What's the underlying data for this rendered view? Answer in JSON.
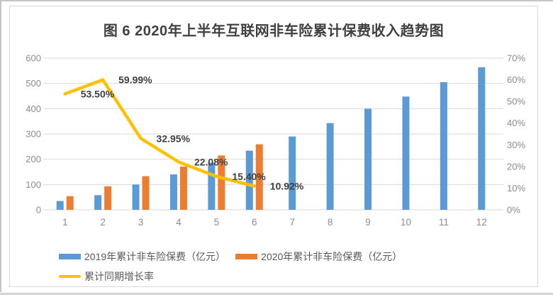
{
  "frame": {
    "background": "#ffffff",
    "card_border_color": "#d9d9d9"
  },
  "chart_data": {
    "type": "bar",
    "subtype": "clustered-bars-with-line",
    "title": "图 6 2020年上半年互联网非车险累计保费收入趋势图",
    "categories": [
      "1",
      "2",
      "3",
      "4",
      "5",
      "6",
      "7",
      "8",
      "9",
      "10",
      "11",
      "12"
    ],
    "series": [
      {
        "name": "2019年累计非车险保费（亿元）",
        "type": "bar",
        "axis": "left",
        "color": "#5B9BD5",
        "values": [
          35,
          58,
          100,
          140,
          186,
          234,
          290,
          343,
          400,
          448,
          505,
          564
        ]
      },
      {
        "name": "2020年累计非车险保费（亿元）",
        "type": "bar",
        "axis": "left",
        "color": "#ED7D31",
        "values": [
          54,
          93,
          133,
          171,
          215,
          259,
          null,
          null,
          null,
          null,
          null,
          null
        ]
      },
      {
        "name": "累计同期增长率",
        "type": "line",
        "axis": "right",
        "color": "#FFC000",
        "values_pct": [
          53.5,
          59.99,
          32.95,
          22.08,
          15.4,
          10.92
        ],
        "point_labels": [
          "53.50%",
          "59.99%",
          "32.95%",
          "22.08%",
          "15.40%",
          "10.92%"
        ]
      }
    ],
    "left_axis": {
      "min": 0,
      "max": 600,
      "step": 100,
      "tick_labels": [
        "600",
        "500",
        "400",
        "300",
        "200",
        "100",
        "0"
      ]
    },
    "right_axis": {
      "min": 0,
      "max": 70,
      "step": 10,
      "tick_labels": [
        "70%",
        "60%",
        "50%",
        "40%",
        "30%",
        "20%",
        "10%",
        "0%"
      ]
    },
    "grid": true,
    "gridline_color": "#d9d9d9",
    "axis_label_color": "#8c8c8c",
    "data_label_color": "#404040",
    "legend_position": "bottom"
  }
}
